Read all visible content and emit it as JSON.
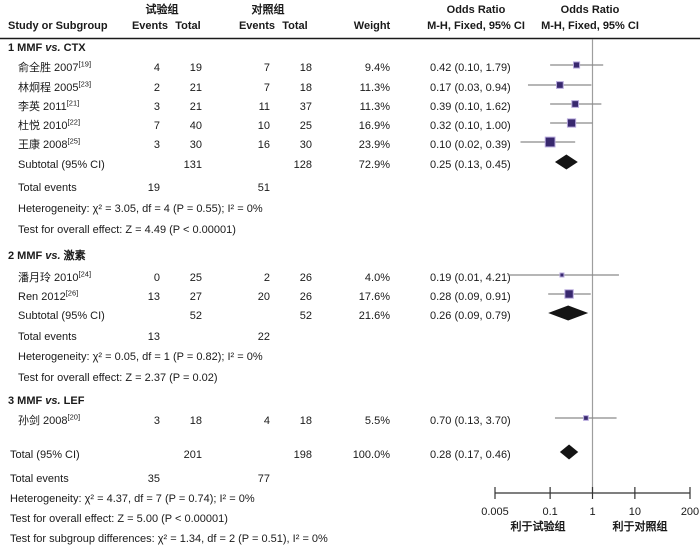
{
  "figure": {
    "columns": {
      "exp_group": "试验组",
      "ctl_group": "对照组",
      "study": "Study or Subgroup",
      "events": "Events",
      "total": "Total",
      "weight": "Weight",
      "odds_ratio": "Odds Ratio",
      "method": "M-H, Fixed, 95% CI"
    },
    "footer": {
      "favors_left": "利于试验组",
      "favors_right": "利于对照组"
    }
  },
  "colors": {
    "square_fill": "#38286e",
    "square_halo": "#b7a9dc",
    "diamond_fill": "#141414",
    "ci_line": "#8a8a8a",
    "null_line": "#9e9e9e",
    "axis_line": "#333333",
    "rule_line": "#1a1a1a",
    "text": "#1a1a1a"
  },
  "chart_data": {
    "type": "scatter",
    "subtype": "forest_plot_meta_analysis",
    "effect_measure": "Odds Ratio, M-H, Fixed, 95% CI",
    "x_scale": "log",
    "x_range": [
      0.005,
      200
    ],
    "x_ticks": [
      "0.005",
      "0.1",
      "1",
      "10",
      "200"
    ],
    "null_line": 1,
    "groups": [
      {
        "title_prefix": "1 MMF ",
        "title_vs": "vs.",
        "title_suffix": " CTX",
        "studies": [
          {
            "name": "俞全胜 2007",
            "ref": "[19]",
            "exp_events": 4,
            "exp_total": 19,
            "ctl_events": 7,
            "ctl_total": 18,
            "weight": "9.4%",
            "or": 0.42,
            "ci_low": 0.1,
            "ci_high": 1.79,
            "or_text": "0.42 (0.10, 1.79)"
          },
          {
            "name": "林炯程 2005",
            "ref": "[23]",
            "exp_events": 2,
            "exp_total": 21,
            "ctl_events": 7,
            "ctl_total": 18,
            "weight": "11.3%",
            "or": 0.17,
            "ci_low": 0.03,
            "ci_high": 0.94,
            "or_text": "0.17 (0.03, 0.94)"
          },
          {
            "name": "李英 2011",
            "ref": "[21]",
            "exp_events": 3,
            "exp_total": 21,
            "ctl_events": 11,
            "ctl_total": 37,
            "weight": "11.3%",
            "or": 0.39,
            "ci_low": 0.1,
            "ci_high": 1.62,
            "or_text": "0.39 (0.10, 1.62)"
          },
          {
            "name": "杜悦 2010",
            "ref": "[22]",
            "exp_events": 7,
            "exp_total": 40,
            "ctl_events": 10,
            "ctl_total": 25,
            "weight": "16.9%",
            "or": 0.32,
            "ci_low": 0.1,
            "ci_high": 1.0,
            "or_text": "0.32 (0.10, 1.00)"
          },
          {
            "name": "王康 2008",
            "ref": "[25]",
            "exp_events": 3,
            "exp_total": 30,
            "ctl_events": 16,
            "ctl_total": 30,
            "weight": "23.9%",
            "or": 0.1,
            "ci_low": 0.02,
            "ci_high": 0.39,
            "or_text": "0.10 (0.02, 0.39)"
          }
        ],
        "subtotal": {
          "label": "Subtotal (95% CI)",
          "exp_total": 131,
          "ctl_total": 128,
          "weight": "72.9%",
          "or": 0.25,
          "ci_low": 0.13,
          "ci_high": 0.45,
          "or_text": "0.25 (0.13, 0.45)"
        },
        "total_events": {
          "label": "Total events",
          "exp": 19,
          "ctl": 51
        },
        "heterogeneity": "Heterogeneity: χ² = 3.05, df = 4 (P = 0.55); I² = 0%",
        "overall_effect": "Test for overall effect: Z = 4.49 (P < 0.00001)"
      },
      {
        "title_prefix": "2 MMF ",
        "title_vs": "vs.",
        "title_suffix": " 激素",
        "studies": [
          {
            "name": "潘月玲 2010",
            "ref": "[24]",
            "exp_events": 0,
            "exp_total": 25,
            "ctl_events": 2,
            "ctl_total": 26,
            "weight": "4.0%",
            "or": 0.19,
            "ci_low": 0.01,
            "ci_high": 4.21,
            "or_text": "0.19 (0.01, 4.21)"
          },
          {
            "name": "Ren 2012",
            "ref": "[26]",
            "exp_events": 13,
            "exp_total": 27,
            "ctl_events": 20,
            "ctl_total": 26,
            "weight": "17.6%",
            "or": 0.28,
            "ci_low": 0.09,
            "ci_high": 0.91,
            "or_text": "0.28 (0.09, 0.91)"
          }
        ],
        "subtotal": {
          "label": "Subtotal (95% CI)",
          "exp_total": 52,
          "ctl_total": 52,
          "weight": "21.6%",
          "or": 0.26,
          "ci_low": 0.09,
          "ci_high": 0.79,
          "or_text": "0.26 (0.09, 0.79)"
        },
        "total_events": {
          "label": "Total events",
          "exp": 13,
          "ctl": 22
        },
        "heterogeneity": "Heterogeneity: χ² = 0.05, df = 1 (P = 0.82); I² = 0%",
        "overall_effect": "Test for overall effect: Z = 2.37 (P = 0.02)"
      },
      {
        "title_prefix": "3 MMF ",
        "title_vs": "vs.",
        "title_suffix": " LEF",
        "studies": [
          {
            "name": "孙剑 2008",
            "ref": "[20]",
            "exp_events": 3,
            "exp_total": 18,
            "ctl_events": 4,
            "ctl_total": 18,
            "weight": "5.5%",
            "or": 0.7,
            "ci_low": 0.13,
            "ci_high": 3.7,
            "or_text": "0.70 (0.13, 3.70)"
          }
        ]
      }
    ],
    "total": {
      "label": "Total (95% CI)",
      "exp_total": 201,
      "ctl_total": 198,
      "weight": "100.0%",
      "or": 0.28,
      "ci_low": 0.17,
      "ci_high": 0.46,
      "or_text": "0.28 (0.17, 0.46)"
    },
    "total_events": {
      "label": "Total events",
      "exp": 35,
      "ctl": 77
    },
    "heterogeneity": "Heterogeneity: χ² = 4.37, df = 7 (P = 0.74); I² = 0%",
    "overall_effect": "Test for overall effect: Z = 5.00 (P < 0.00001)",
    "subgroup_diff": "Test for subgroup differences: χ² = 1.34, df = 2 (P = 0.51), I² = 0%"
  }
}
